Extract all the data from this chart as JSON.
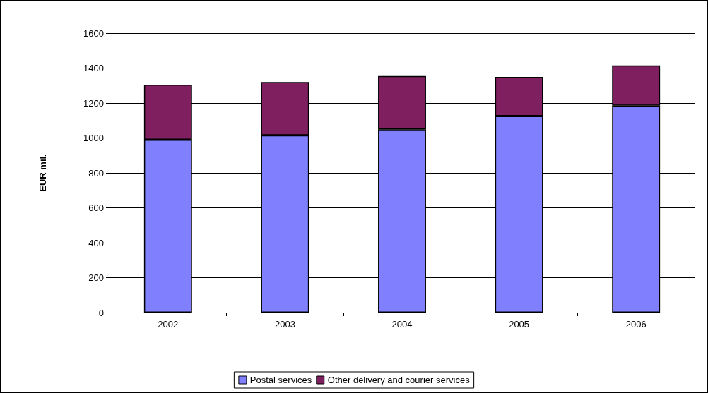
{
  "chart_data": {
    "type": "bar",
    "stacked": true,
    "ylabel": "EUR mil.",
    "categories": [
      "2002",
      "2003",
      "2004",
      "2005",
      "2006"
    ],
    "series": [
      {
        "name": "Postal services",
        "color": "#8080ff",
        "values": [
          990,
          1015,
          1050,
          1125,
          1185
        ]
      },
      {
        "name": "Other delivery and courier services",
        "color": "#7f1f5f",
        "values": [
          315,
          305,
          305,
          225,
          230
        ]
      }
    ],
    "ylim": [
      0,
      1600
    ],
    "yticks": [
      0,
      200,
      400,
      600,
      800,
      1000,
      1200,
      1400,
      1600
    ],
    "grid": "y",
    "legend": "bottom"
  }
}
